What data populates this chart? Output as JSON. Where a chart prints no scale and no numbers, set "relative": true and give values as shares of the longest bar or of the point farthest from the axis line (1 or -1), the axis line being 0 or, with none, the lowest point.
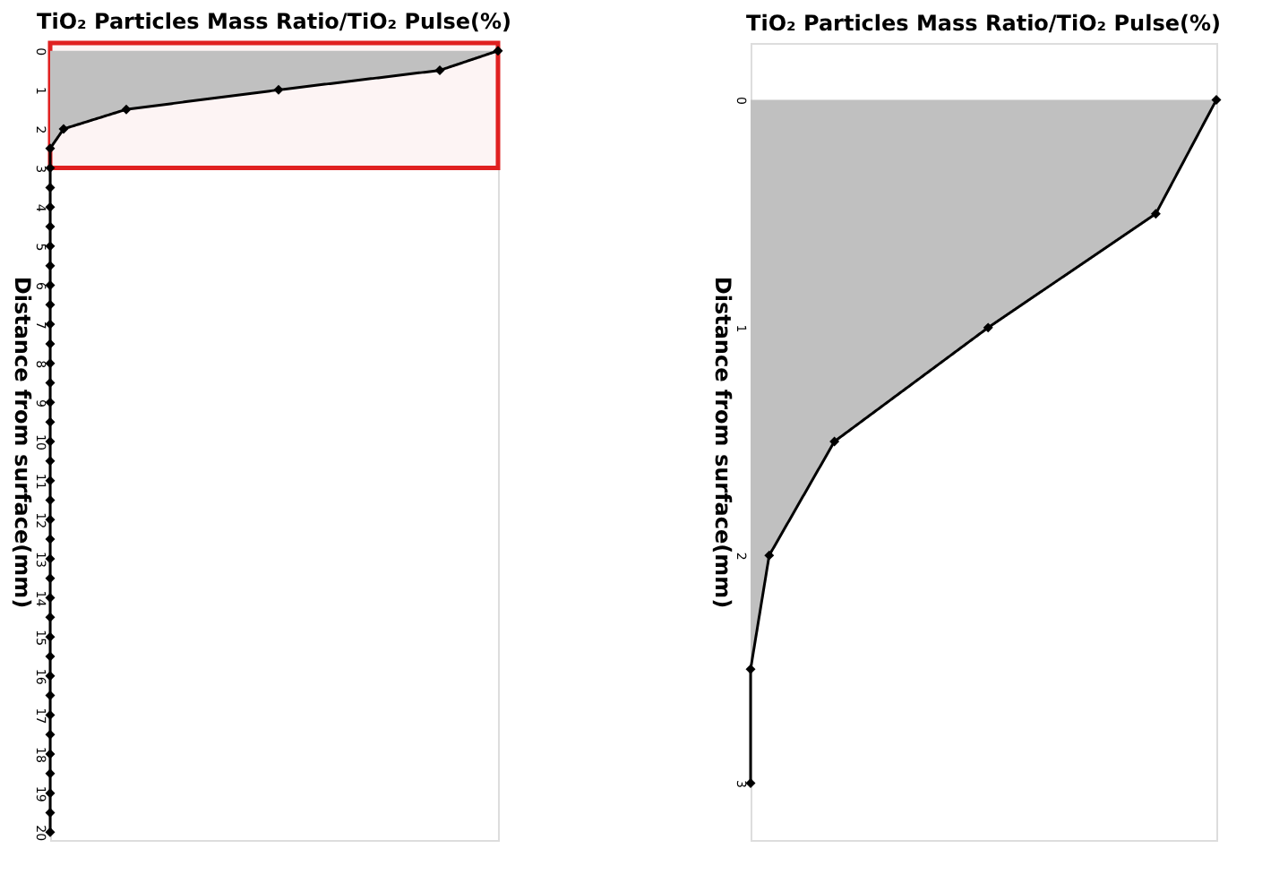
{
  "chart_data": [
    {
      "type": "area",
      "title": "TiO₂ Particles Mass Ratio/TiO₂ Pulse(%)",
      "ylabel": "Distance from surface(mm)",
      "orientation": "horizontal",
      "relative": true,
      "tick_labels": "y",
      "marker": "diamond",
      "line_style": "solid",
      "grid": false,
      "x": [
        0,
        0.5,
        1,
        1.5,
        2,
        2.5,
        3,
        3.5,
        4,
        4.5,
        5,
        5.5,
        6,
        6.5,
        7,
        7.5,
        8,
        8.5,
        9,
        9.5,
        10,
        10.5,
        11,
        11.5,
        12,
        12.5,
        13,
        13.5,
        14,
        14.5,
        15,
        15.5,
        16,
        16.5,
        17,
        17.5,
        18,
        18.5,
        19,
        19.5,
        20
      ],
      "series": [
        {
          "color": "#000000",
          "values": [
            1,
            0.87,
            0.51,
            0.17,
            0.03,
            0,
            0,
            0,
            0,
            0,
            0,
            0,
            0,
            0,
            0,
            0,
            0,
            0,
            0,
            0,
            0,
            0,
            0,
            0,
            0,
            0,
            0,
            0,
            0,
            0,
            0,
            0,
            0,
            0,
            0,
            0,
            0,
            0,
            0,
            0,
            0
          ]
        }
      ],
      "ylim": [
        20.2,
        -0.2
      ],
      "yticks": [
        0,
        1,
        2,
        3,
        4,
        5,
        6,
        7,
        8,
        9,
        10,
        11,
        12,
        13,
        14,
        15,
        16,
        17,
        18,
        19,
        20
      ],
      "bands": [
        {
          "axis": "y",
          "from": -0.2,
          "to": 3,
          "color": "#e02020"
        }
      ]
    },
    {
      "type": "area",
      "title": "TiO₂ Particles Mass Ratio/TiO₂ Pulse(%)",
      "ylabel": "Distance from surface(mm)",
      "orientation": "horizontal",
      "relative": true,
      "tick_labels": "y",
      "marker": "diamond",
      "line_style": "solid",
      "grid": false,
      "x": [
        0,
        0.5,
        1,
        1.5,
        2,
        2.5,
        3
      ],
      "series": [
        {
          "color": "#000000",
          "values": [
            1,
            0.87,
            0.51,
            0.18,
            0.04,
            0,
            0
          ]
        }
      ],
      "ylim": [
        3.25,
        -0.25
      ],
      "yticks": [
        0,
        1,
        2,
        3
      ]
    }
  ]
}
